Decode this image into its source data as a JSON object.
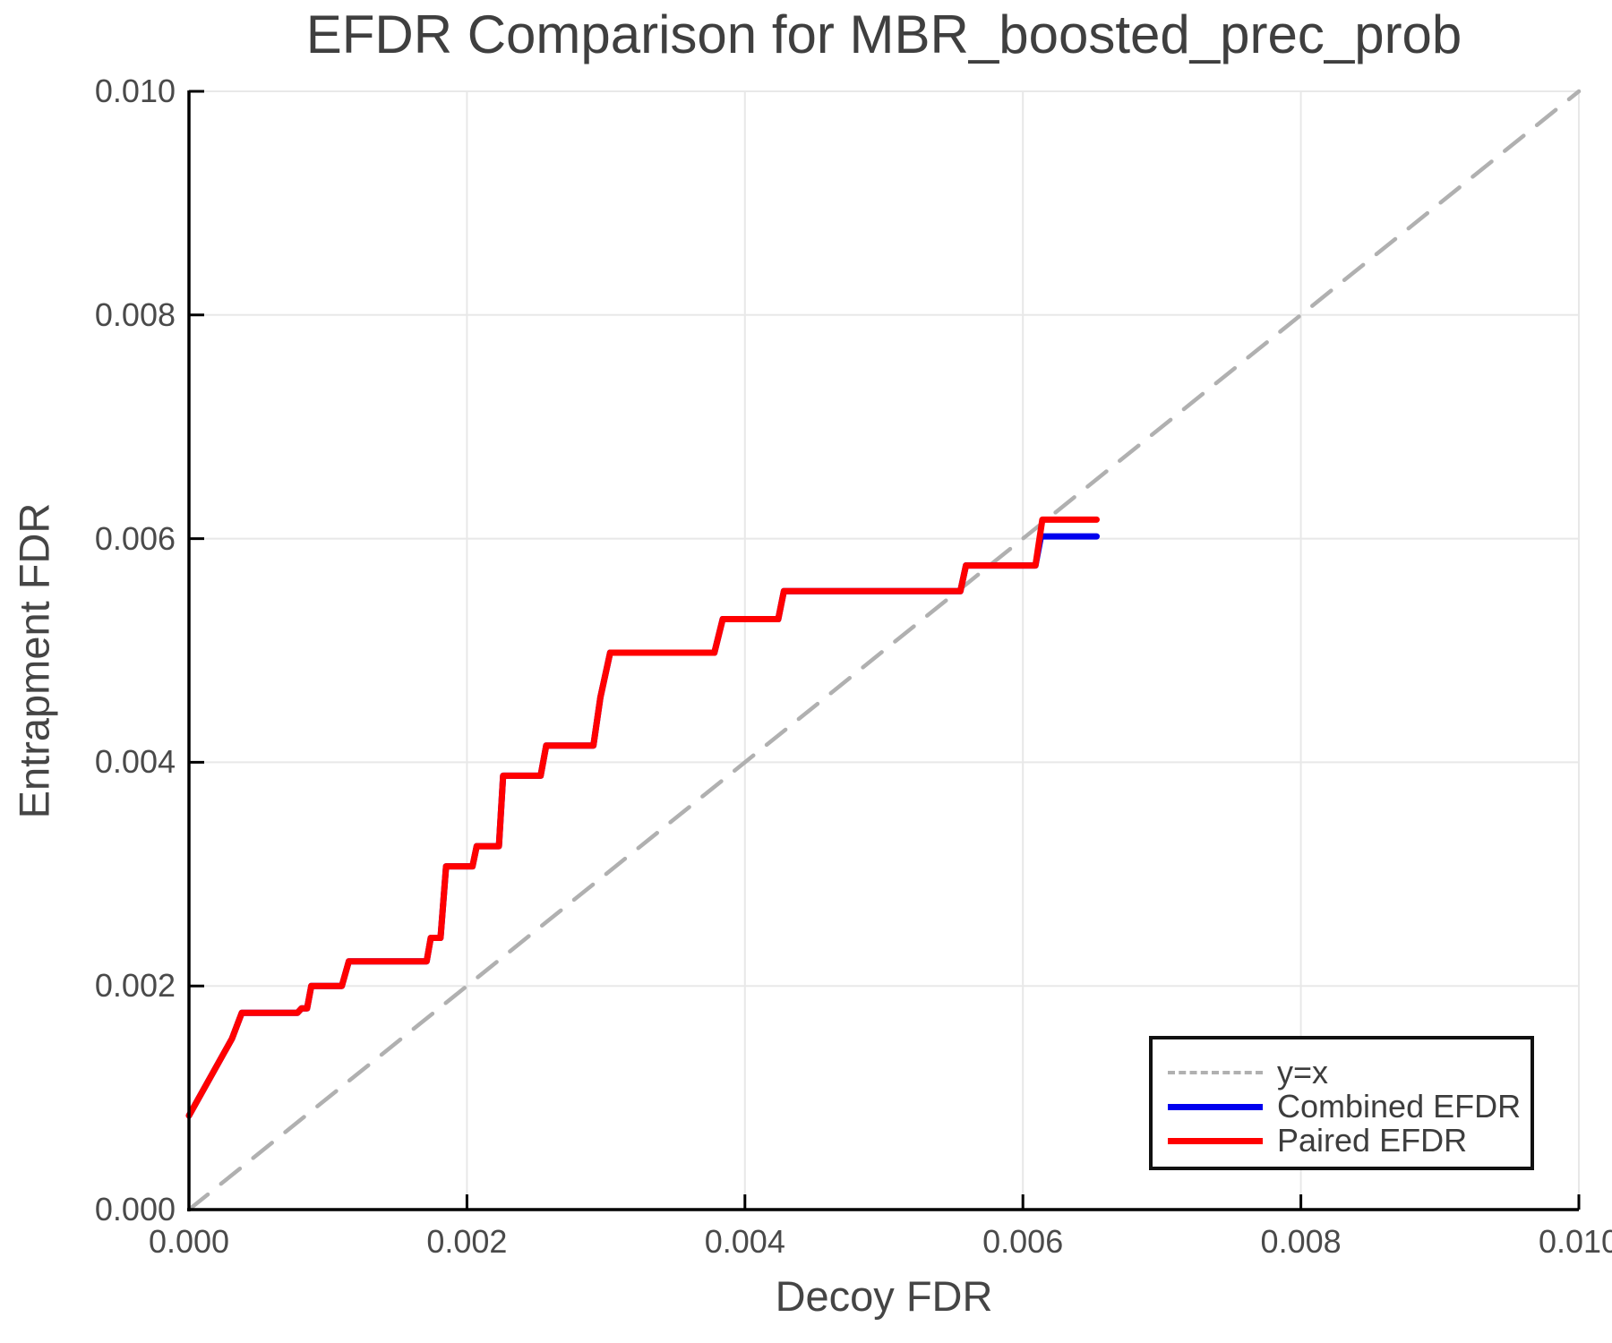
{
  "title": "EFDR Comparison for MBR_boosted_prec_prob",
  "chart_data": {
    "type": "line",
    "title": "EFDR Comparison for MBR_boosted_prec_prob",
    "xlabel": "Decoy FDR",
    "ylabel": "Entrapment FDR",
    "xlim": [
      0.0,
      0.01
    ],
    "ylim": [
      0.0,
      0.01
    ],
    "grid": true,
    "legend_position": "bottom-right",
    "x_tick_values": [
      0.0,
      0.002,
      0.004,
      0.006,
      0.008,
      0.01
    ],
    "x_tick_labels": [
      "0.000",
      "0.002",
      "0.004",
      "0.006",
      "0.008",
      "0.010"
    ],
    "y_tick_values": [
      0.0,
      0.002,
      0.004,
      0.006,
      0.008,
      0.01
    ],
    "y_tick_labels": [
      "0.000",
      "0.002",
      "0.004",
      "0.006",
      "0.008",
      "0.010"
    ],
    "series": [
      {
        "name": "y=x",
        "style": "dashed",
        "color": "#b0b0b0",
        "points": [
          [
            0.0,
            0.0
          ],
          [
            0.01,
            0.01
          ]
        ]
      },
      {
        "name": "Combined EFDR",
        "style": "solid",
        "color": "#0000ee",
        "points": [
          [
            0.0,
            0.00084
          ],
          [
            0.00031,
            0.00153
          ],
          [
            0.00038,
            0.00176
          ],
          [
            0.00078,
            0.00176
          ],
          [
            0.00081,
            0.0018
          ],
          [
            0.00085,
            0.0018
          ],
          [
            0.00088,
            0.002
          ],
          [
            0.0011,
            0.002
          ],
          [
            0.00115,
            0.00222
          ],
          [
            0.00171,
            0.00222
          ],
          [
            0.00174,
            0.00243
          ],
          [
            0.00181,
            0.00243
          ],
          [
            0.00185,
            0.00307
          ],
          [
            0.00204,
            0.00307
          ],
          [
            0.00207,
            0.00325
          ],
          [
            0.00223,
            0.00325
          ],
          [
            0.00226,
            0.00388
          ],
          [
            0.00253,
            0.00388
          ],
          [
            0.00257,
            0.00415
          ],
          [
            0.00291,
            0.00415
          ],
          [
            0.00296,
            0.00458
          ],
          [
            0.00303,
            0.00498
          ],
          [
            0.00378,
            0.00498
          ],
          [
            0.00384,
            0.00528
          ],
          [
            0.00424,
            0.00528
          ],
          [
            0.00428,
            0.00553
          ],
          [
            0.00555,
            0.00553
          ],
          [
            0.00559,
            0.00576
          ],
          [
            0.00609,
            0.00576
          ],
          [
            0.00613,
            0.00602
          ],
          [
            0.00653,
            0.00602
          ]
        ]
      },
      {
        "name": "Paired EFDR",
        "style": "solid",
        "color": "#ff0000",
        "points": [
          [
            0.0,
            0.00084
          ],
          [
            0.00031,
            0.00153
          ],
          [
            0.00038,
            0.00176
          ],
          [
            0.00078,
            0.00176
          ],
          [
            0.00081,
            0.0018
          ],
          [
            0.00085,
            0.0018
          ],
          [
            0.00088,
            0.002
          ],
          [
            0.0011,
            0.002
          ],
          [
            0.00115,
            0.00222
          ],
          [
            0.00171,
            0.00222
          ],
          [
            0.00174,
            0.00243
          ],
          [
            0.00181,
            0.00243
          ],
          [
            0.00185,
            0.00307
          ],
          [
            0.00204,
            0.00307
          ],
          [
            0.00207,
            0.00325
          ],
          [
            0.00223,
            0.00325
          ],
          [
            0.00226,
            0.00388
          ],
          [
            0.00253,
            0.00388
          ],
          [
            0.00257,
            0.00415
          ],
          [
            0.00291,
            0.00415
          ],
          [
            0.00296,
            0.00458
          ],
          [
            0.00303,
            0.00498
          ],
          [
            0.00378,
            0.00498
          ],
          [
            0.00384,
            0.00528
          ],
          [
            0.00424,
            0.00528
          ],
          [
            0.00428,
            0.00553
          ],
          [
            0.00555,
            0.00553
          ],
          [
            0.00559,
            0.00576
          ],
          [
            0.00609,
            0.00576
          ],
          [
            0.00614,
            0.00617
          ],
          [
            0.00653,
            0.00617
          ]
        ]
      }
    ],
    "colors": {
      "grid": "#e8e8e8",
      "spine": "#000000",
      "diagonal": "#b0b0b0",
      "combined": "#0000ee",
      "paired": "#ff0000"
    }
  }
}
